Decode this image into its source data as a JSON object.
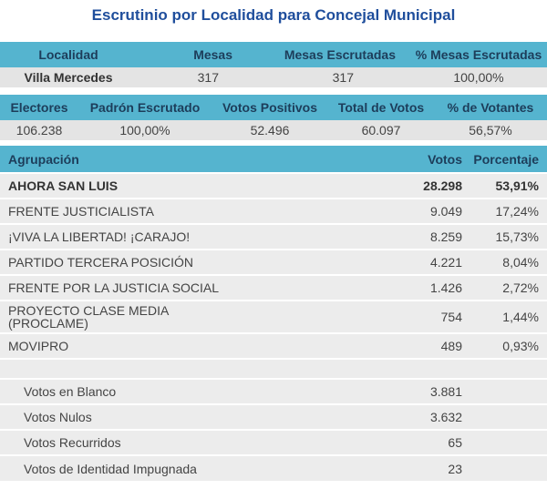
{
  "title": "Escrutinio por Localidad para Concejal Municipal",
  "summary1": {
    "headers": [
      "Localidad",
      "Mesas",
      "Mesas Escrutadas",
      "% Mesas Escrutadas"
    ],
    "values": [
      "Villa Mercedes",
      "317",
      "317",
      "100,00%"
    ]
  },
  "summary2": {
    "headers": [
      "Electores",
      "Padrón Escrutado",
      "Votos Positivos",
      "Total de Votos",
      "% de Votantes"
    ],
    "values": [
      "106.238",
      "100,00%",
      "52.496",
      "60.097",
      "56,57%"
    ]
  },
  "results": {
    "headers": [
      "Agrupación",
      "Votos",
      "Porcentaje"
    ],
    "rows": [
      {
        "name": "AHORA SAN LUIS",
        "votes": "28.298",
        "pct": "53,91%"
      },
      {
        "name": "FRENTE JUSTICIALISTA",
        "votes": "9.049",
        "pct": "17,24%"
      },
      {
        "name": "¡VIVA LA LIBERTAD! ¡CARAJO!",
        "votes": "8.259",
        "pct": "15,73%"
      },
      {
        "name": "PARTIDO TERCERA POSICIÓN",
        "votes": "4.221",
        "pct": "8,04%"
      },
      {
        "name": "FRENTE POR LA JUSTICIA SOCIAL",
        "votes": "1.426",
        "pct": "2,72%"
      },
      {
        "name": "PROYECTO CLASE MEDIA (PROCLAME)",
        "votes": "754",
        "pct": "1,44%"
      },
      {
        "name": "MOVIPRO",
        "votes": "489",
        "pct": "0,93%"
      }
    ],
    "other": [
      {
        "name": "Votos en Blanco",
        "votes": "3.881"
      },
      {
        "name": "Votos Nulos",
        "votes": "3.632"
      },
      {
        "name": "Votos Recurridos",
        "votes": "65"
      },
      {
        "name": "Votos de Identidad Impugnada",
        "votes": "23"
      }
    ]
  }
}
